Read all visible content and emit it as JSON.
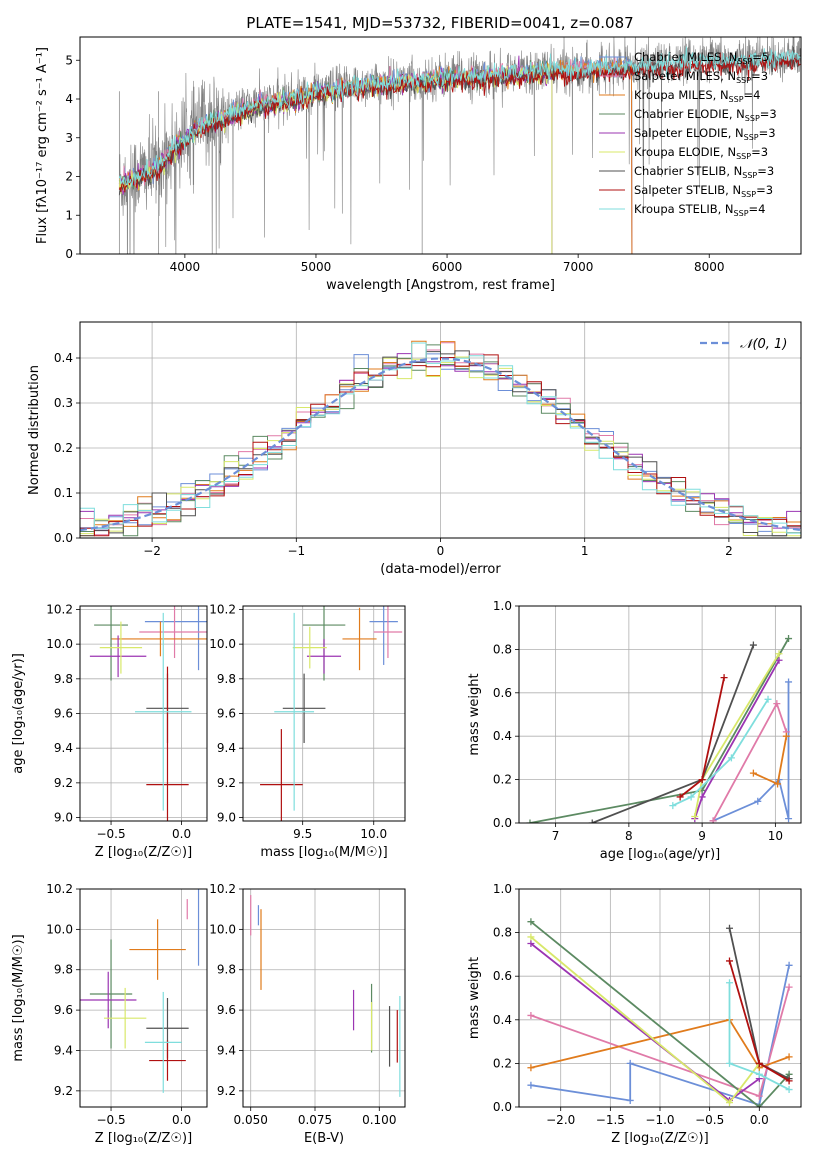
{
  "figure": {
    "title": "PLATE=1541, MJD=53732, FIBERID=0041, z=0.087"
  },
  "colors": {
    "chabrier_miles": "#6c8fd8",
    "salpeter_miles": "#e07aa8",
    "kroupa_miles": "#e07b1c",
    "chabrier_elodie": "#5c8a62",
    "salpeter_elodie": "#9b35b2",
    "kroupa_elodie": "#d8e86a",
    "chabrier_stelib": "#505050",
    "salpeter_stelib": "#b01010",
    "kroupa_stelib": "#7fdedd",
    "data": "#808080",
    "gaussian": "#6c8fd8"
  },
  "chart_data": [
    {
      "id": "spectrum",
      "type": "line",
      "title": "PLATE=1541, MJD=53732, FIBERID=0041, z=0.087",
      "xlabel": "wavelength [Angstrom, rest frame]",
      "ylabel": "Flux [fλ10⁻¹⁷ erg cm⁻² s⁻¹ A⁻¹]",
      "xlim": [
        3200,
        8700
      ],
      "ylim": [
        0,
        5.6
      ],
      "xticks": [
        "4000",
        "5000",
        "6000",
        "7000",
        "8000"
      ],
      "xtick_values": [
        4000,
        5000,
        6000,
        7000,
        8000
      ],
      "yticks": [
        "0",
        "1",
        "2",
        "3",
        "4",
        "5"
      ],
      "ytick_values": [
        0,
        1,
        2,
        3,
        4,
        5
      ],
      "grid": false,
      "legend_position": "top-right",
      "continuum": {
        "x": [
          3500,
          3600,
          3700,
          3800,
          3900,
          4000,
          4100,
          4200,
          4300,
          4400,
          4500,
          4600,
          4800,
          5000,
          5200,
          5400,
          5600,
          5800,
          6000,
          6200,
          6400,
          6600,
          6800,
          7000,
          7200,
          7400,
          7600,
          7800,
          8000,
          8200,
          8400,
          8600,
          8700
        ],
        "y": [
          1.8,
          2.0,
          2.1,
          2.3,
          2.7,
          3.0,
          3.3,
          3.45,
          3.55,
          3.7,
          3.8,
          3.9,
          4.0,
          4.2,
          4.3,
          4.4,
          4.45,
          4.5,
          4.6,
          4.6,
          4.65,
          4.7,
          4.75,
          4.8,
          4.8,
          4.85,
          4.9,
          4.95,
          5.0,
          5.0,
          5.05,
          5.1,
          5.1
        ]
      },
      "model_ranges": [
        {
          "name": "Chabrier MILES, N_SSP=5",
          "x_end": 7410
        },
        {
          "name": "Salpeter MILES, N_SSP=3",
          "x_end": 7410
        },
        {
          "name": "Kroupa MILES, N_SSP=4",
          "x_end": 7410
        },
        {
          "name": "Chabrier ELODIE, N_SSP=3",
          "x_end": 6800
        },
        {
          "name": "Salpeter ELODIE, N_SSP=3",
          "x_end": 6800
        },
        {
          "name": "Kroupa ELODIE, N_SSP=3",
          "x_end": 6800
        },
        {
          "name": "Chabrier STELIB, N_SSP=3",
          "x_end": 8700
        },
        {
          "name": "Salpeter STELIB, N_SSP=3",
          "x_end": 8700
        },
        {
          "name": "Kroupa STELIB, N_SSP=4",
          "x_end": 8700
        }
      ],
      "legend": [
        {
          "label": "Chabrier MILES, N",
          "sub": "SSP",
          "tail": "=5",
          "color": "chabrier_miles"
        },
        {
          "label": "Salpeter MILES, N",
          "sub": "SSP",
          "tail": "=3",
          "color": "salpeter_miles"
        },
        {
          "label": "Kroupa MILES, N",
          "sub": "SSP",
          "tail": "=4",
          "color": "kroupa_miles"
        },
        {
          "label": "Chabrier ELODIE, N",
          "sub": "SSP",
          "tail": "=3",
          "color": "chabrier_elodie"
        },
        {
          "label": "Salpeter ELODIE, N",
          "sub": "SSP",
          "tail": "=3",
          "color": "salpeter_elodie"
        },
        {
          "label": "Kroupa ELODIE, N",
          "sub": "SSP",
          "tail": "=3",
          "color": "kroupa_elodie"
        },
        {
          "label": "Chabrier STELIB, N",
          "sub": "SSP",
          "tail": "=3",
          "color": "chabrier_stelib"
        },
        {
          "label": "Salpeter STELIB, N",
          "sub": "SSP",
          "tail": "=3",
          "color": "salpeter_stelib"
        },
        {
          "label": "Kroupa STELIB, N",
          "sub": "SSP",
          "tail": "=4",
          "color": "kroupa_stelib"
        }
      ]
    },
    {
      "id": "residuals",
      "type": "area",
      "xlabel": "(data-model)/error",
      "ylabel": "Normed distribution",
      "xlim": [
        -2.5,
        2.5
      ],
      "ylim": [
        0,
        0.48
      ],
      "xticks": [
        "−2",
        "−1",
        "0",
        "1",
        "2"
      ],
      "xtick_values": [
        -2,
        -1,
        0,
        1,
        2
      ],
      "yticks": [
        "0.0",
        "0.1",
        "0.2",
        "0.3",
        "0.4"
      ],
      "ytick_values": [
        0,
        0.1,
        0.2,
        0.3,
        0.4
      ],
      "grid": true,
      "legend_position": "top-right",
      "gaussian_label": "𝒩(0, 1)",
      "bin_width": 0.1,
      "bin_start": -2.5
    },
    {
      "id": "age_vs_Z",
      "type": "scatter",
      "xlabel": "Z [log₁₀(Z/Z☉)]",
      "ylabel": "age  [log₁₀(age/yr)]",
      "xlim": [
        -0.72,
        0.18
      ],
      "ylim": [
        8.98,
        10.22
      ],
      "xticks": [
        "−0.5",
        "0.0"
      ],
      "xtick_values": [
        -0.5,
        0
      ],
      "yticks": [
        "9.0",
        "9.2",
        "9.4",
        "9.6",
        "9.8",
        "10.0",
        "10.2"
      ],
      "ytick_values": [
        9.0,
        9.2,
        9.4,
        9.6,
        9.8,
        10.0,
        10.2
      ],
      "grid": true,
      "points": [
        {
          "color": "chabrier_miles",
          "x": 0.12,
          "xerr": 0.38,
          "y": 10.13,
          "yerr": 0.28
        },
        {
          "color": "salpeter_miles",
          "x": -0.05,
          "xerr": 0.25,
          "y": 10.07,
          "yerr": 0.15
        },
        {
          "color": "kroupa_miles",
          "x": -0.15,
          "xerr": 0.35,
          "y": 10.03,
          "yerr": 0.1
        },
        {
          "color": "chabrier_elodie",
          "x": -0.5,
          "xerr": 0.12,
          "y": 10.11,
          "yerr": 0.32
        },
        {
          "color": "salpeter_elodie",
          "x": -0.45,
          "xerr": 0.2,
          "y": 9.93,
          "yerr": 0.12
        },
        {
          "color": "kroupa_elodie",
          "x": -0.43,
          "xerr": 0.15,
          "y": 9.98,
          "yerr": 0.15
        },
        {
          "color": "chabrier_stelib",
          "x": -0.1,
          "xerr": 0.15,
          "y": 9.63,
          "yerr": 0.2
        },
        {
          "color": "salpeter_stelib",
          "x": -0.1,
          "xerr": 0.15,
          "y": 9.19,
          "yerr": 0.68
        },
        {
          "color": "kroupa_stelib",
          "x": -0.13,
          "xerr": 0.2,
          "y": 9.61,
          "yerr": 0.57
        }
      ]
    },
    {
      "id": "age_vs_mass",
      "type": "scatter",
      "xlabel": "mass [log₁₀(M/M☉)]",
      "ylabel": "",
      "xlim": [
        9.08,
        10.22
      ],
      "ylim": [
        8.98,
        10.22
      ],
      "xticks": [
        "9.5",
        "10.0"
      ],
      "xtick_values": [
        9.5,
        10.0
      ],
      "yticks": [
        "9.0",
        "9.2",
        "9.4",
        "9.6",
        "9.8",
        "10.0",
        "10.2"
      ],
      "ytick_values": [
        9.0,
        9.2,
        9.4,
        9.6,
        9.8,
        10.0,
        10.2
      ],
      "grid": true,
      "points": [
        {
          "color": "chabrier_miles",
          "x": 10.07,
          "xerr": 0.1,
          "y": 10.13,
          "yerr": 0.25
        },
        {
          "color": "salpeter_miles",
          "x": 10.1,
          "xerr": 0.1,
          "y": 10.07,
          "yerr": 0.15
        },
        {
          "color": "kroupa_miles",
          "x": 9.9,
          "xerr": 0.12,
          "y": 10.03,
          "yerr": 0.18
        },
        {
          "color": "chabrier_elodie",
          "x": 9.65,
          "xerr": 0.15,
          "y": 10.11,
          "yerr": 0.32
        },
        {
          "color": "salpeter_elodie",
          "x": 9.65,
          "xerr": 0.12,
          "y": 9.93,
          "yerr": 0.1
        },
        {
          "color": "kroupa_elodie",
          "x": 9.55,
          "xerr": 0.12,
          "y": 9.98,
          "yerr": 0.12
        },
        {
          "color": "chabrier_stelib",
          "x": 9.51,
          "xerr": 0.15,
          "y": 9.63,
          "yerr": 0.2
        },
        {
          "color": "salpeter_stelib",
          "x": 9.35,
          "xerr": 0.15,
          "y": 9.19,
          "yerr": 0.32
        },
        {
          "color": "kroupa_stelib",
          "x": 9.44,
          "xerr": 0.14,
          "y": 9.61,
          "yerr": 0.57
        }
      ]
    },
    {
      "id": "weight_vs_age",
      "type": "line",
      "xlabel": "age  [log₁₀(age/yr)]",
      "ylabel": "mass weight",
      "xlim": [
        6.5,
        10.35
      ],
      "ylim": [
        0,
        1.0
      ],
      "xticks": [
        "7",
        "8",
        "9",
        "10"
      ],
      "xtick_values": [
        7,
        8,
        9,
        10
      ],
      "yticks": [
        "0.0",
        "0.2",
        "0.4",
        "0.6",
        "0.8",
        "1.0"
      ],
      "ytick_values": [
        0,
        0.2,
        0.4,
        0.6,
        0.8,
        1.0
      ],
      "grid": true,
      "series": [
        {
          "color": "chabrier_miles",
          "x": [
            9.15,
            9.76,
            10.05,
            10.18,
            10.18
          ],
          "y": [
            0.01,
            0.1,
            0.2,
            0.02,
            0.65
          ]
        },
        {
          "color": "salpeter_miles",
          "x": [
            9.15,
            10.02,
            10.15
          ],
          "y": [
            0.01,
            0.55,
            0.42
          ]
        },
        {
          "color": "kroupa_miles",
          "x": [
            9.7,
            10.03,
            10.15
          ],
          "y": [
            0.23,
            0.18,
            0.4
          ]
        },
        {
          "color": "chabrier_elodie",
          "x": [
            6.65,
            9.0,
            10.18
          ],
          "y": [
            0.0,
            0.15,
            0.85
          ]
        },
        {
          "color": "salpeter_elodie",
          "x": [
            8.9,
            9.0,
            10.05
          ],
          "y": [
            0.02,
            0.12,
            0.75
          ]
        },
        {
          "color": "kroupa_elodie",
          "x": [
            8.9,
            9.0,
            10.05
          ],
          "y": [
            0.03,
            0.2,
            0.78
          ]
        },
        {
          "color": "chabrier_stelib",
          "x": [
            7.5,
            9.0,
            9.7
          ],
          "y": [
            0.0,
            0.2,
            0.82
          ]
        },
        {
          "color": "salpeter_stelib",
          "x": [
            8.7,
            9.0,
            9.3
          ],
          "y": [
            0.12,
            0.2,
            0.67
          ]
        },
        {
          "color": "kroupa_stelib",
          "x": [
            8.6,
            8.85,
            9.4,
            9.9
          ],
          "y": [
            0.08,
            0.12,
            0.3,
            0.57
          ]
        }
      ]
    },
    {
      "id": "mass_vs_Z",
      "type": "scatter",
      "xlabel": "Z [log₁₀(Z/Z☉)]",
      "ylabel": "mass [log₁₀(M/M☉)]",
      "xlim": [
        -0.72,
        0.18
      ],
      "ylim": [
        9.12,
        10.2
      ],
      "xticks": [
        "−0.5",
        "0.0"
      ],
      "xtick_values": [
        -0.5,
        0
      ],
      "yticks": [
        "9.2",
        "9.4",
        "9.6",
        "9.8",
        "10.0",
        "10.2"
      ],
      "ytick_values": [
        9.2,
        9.4,
        9.6,
        9.8,
        10.0,
        10.2
      ],
      "grid": true,
      "points": [
        {
          "color": "chabrier_miles",
          "x": 0.12,
          "xerr": 0.0,
          "y": 10.07,
          "yerr": 0.25
        },
        {
          "color": "salpeter_miles",
          "x": 0.04,
          "xerr": 0.0,
          "y": 10.1,
          "yerr": 0.05
        },
        {
          "color": "kroupa_miles",
          "x": -0.17,
          "xerr": 0.2,
          "y": 9.9,
          "yerr": 0.15
        },
        {
          "color": "chabrier_elodie",
          "x": -0.5,
          "xerr": 0.15,
          "y": 9.68,
          "yerr": 0.27
        },
        {
          "color": "salpeter_elodie",
          "x": -0.52,
          "xerr": 0.2,
          "y": 9.65,
          "yerr": 0.14
        },
        {
          "color": "kroupa_elodie",
          "x": -0.4,
          "xerr": 0.15,
          "y": 9.56,
          "yerr": 0.15
        },
        {
          "color": "chabrier_stelib",
          "x": -0.1,
          "xerr": 0.15,
          "y": 9.51,
          "yerr": 0.15
        },
        {
          "color": "salpeter_stelib",
          "x": -0.1,
          "xerr": 0.13,
          "y": 9.35,
          "yerr": 0.1
        },
        {
          "color": "kroupa_stelib",
          "x": -0.13,
          "xerr": 0.13,
          "y": 9.44,
          "yerr": 0.25
        }
      ]
    },
    {
      "id": "mass_vs_EBV",
      "type": "scatter",
      "xlabel": "E(B-V)",
      "ylabel": "",
      "xlim": [
        0.047,
        0.11
      ],
      "ylim": [
        9.12,
        10.2
      ],
      "xticks": [
        "0.050",
        "0.075",
        "0.100"
      ],
      "xtick_values": [
        0.05,
        0.075,
        0.1
      ],
      "yticks": [
        "9.2",
        "9.4",
        "9.6",
        "9.8",
        "10.0",
        "10.2"
      ],
      "ytick_values": [
        9.2,
        9.4,
        9.6,
        9.8,
        10.0,
        10.2
      ],
      "grid": true,
      "points": [
        {
          "color": "chabrier_miles",
          "x": 0.053,
          "xerr": 0,
          "y": 10.07,
          "yerr": 0.05
        },
        {
          "color": "salpeter_miles",
          "x": 0.05,
          "xerr": 0,
          "y": 10.07,
          "yerr": 0.1
        },
        {
          "color": "kroupa_miles",
          "x": 0.054,
          "xerr": 0,
          "y": 9.9,
          "yerr": 0.2
        },
        {
          "color": "chabrier_elodie",
          "x": 0.097,
          "xerr": 0,
          "y": 9.56,
          "yerr": 0.17
        },
        {
          "color": "salpeter_elodie",
          "x": 0.09,
          "xerr": 0,
          "y": 9.6,
          "yerr": 0.1
        },
        {
          "color": "kroupa_elodie",
          "x": 0.097,
          "xerr": 0,
          "y": 9.52,
          "yerr": 0.12
        },
        {
          "color": "chabrier_stelib",
          "x": 0.104,
          "xerr": 0,
          "y": 9.47,
          "yerr": 0.15
        },
        {
          "color": "salpeter_stelib",
          "x": 0.107,
          "xerr": 0,
          "y": 9.47,
          "yerr": 0.13
        },
        {
          "color": "kroupa_stelib",
          "x": 0.108,
          "xerr": 0,
          "y": 9.42,
          "yerr": 0.25
        }
      ]
    },
    {
      "id": "weight_vs_Z",
      "type": "line",
      "xlabel": "Z [log₁₀(Z/Z☉)]",
      "ylabel": "mass weight",
      "xlim": [
        -2.42,
        0.42
      ],
      "ylim": [
        0,
        1.0
      ],
      "xticks": [
        "−2.0",
        "−1.5",
        "−1.0",
        "−0.5",
        "0.0"
      ],
      "xtick_values": [
        -2.0,
        -1.5,
        -1.0,
        -0.5,
        0.0
      ],
      "yticks": [
        "0.0",
        "0.2",
        "0.4",
        "0.6",
        "0.8",
        "1.0"
      ],
      "ytick_values": [
        0,
        0.2,
        0.4,
        0.6,
        0.8,
        1.0
      ],
      "grid": true,
      "series": [
        {
          "color": "chabrier_miles",
          "x": [
            -2.3,
            -1.3,
            -1.3,
            0.0,
            0.3
          ],
          "y": [
            0.1,
            0.03,
            0.2,
            0.01,
            0.65
          ]
        },
        {
          "color": "salpeter_miles",
          "x": [
            -2.3,
            0.0,
            0.3
          ],
          "y": [
            0.42,
            0.05,
            0.55
          ]
        },
        {
          "color": "kroupa_miles",
          "x": [
            -2.3,
            -0.3,
            0.0,
            0.3
          ],
          "y": [
            0.18,
            0.4,
            0.18,
            0.23
          ]
        },
        {
          "color": "chabrier_elodie",
          "x": [
            -2.3,
            0.0,
            0.3
          ],
          "y": [
            0.85,
            0.0,
            0.15
          ]
        },
        {
          "color": "salpeter_elodie",
          "x": [
            -2.3,
            -0.3,
            0.0
          ],
          "y": [
            0.75,
            0.03,
            0.13
          ]
        },
        {
          "color": "kroupa_elodie",
          "x": [
            -2.3,
            -0.3,
            0.0
          ],
          "y": [
            0.78,
            0.02,
            0.2
          ]
        },
        {
          "color": "chabrier_stelib",
          "x": [
            -0.3,
            0.0,
            0.3
          ],
          "y": [
            0.82,
            0.2,
            0.13
          ]
        },
        {
          "color": "salpeter_stelib",
          "x": [
            -0.3,
            0.0,
            0.3
          ],
          "y": [
            0.67,
            0.2,
            0.12
          ]
        },
        {
          "color": "kroupa_stelib",
          "x": [
            -0.3,
            -0.3,
            0.0,
            0.3
          ],
          "y": [
            0.57,
            0.2,
            0.15,
            0.08
          ]
        }
      ]
    }
  ]
}
